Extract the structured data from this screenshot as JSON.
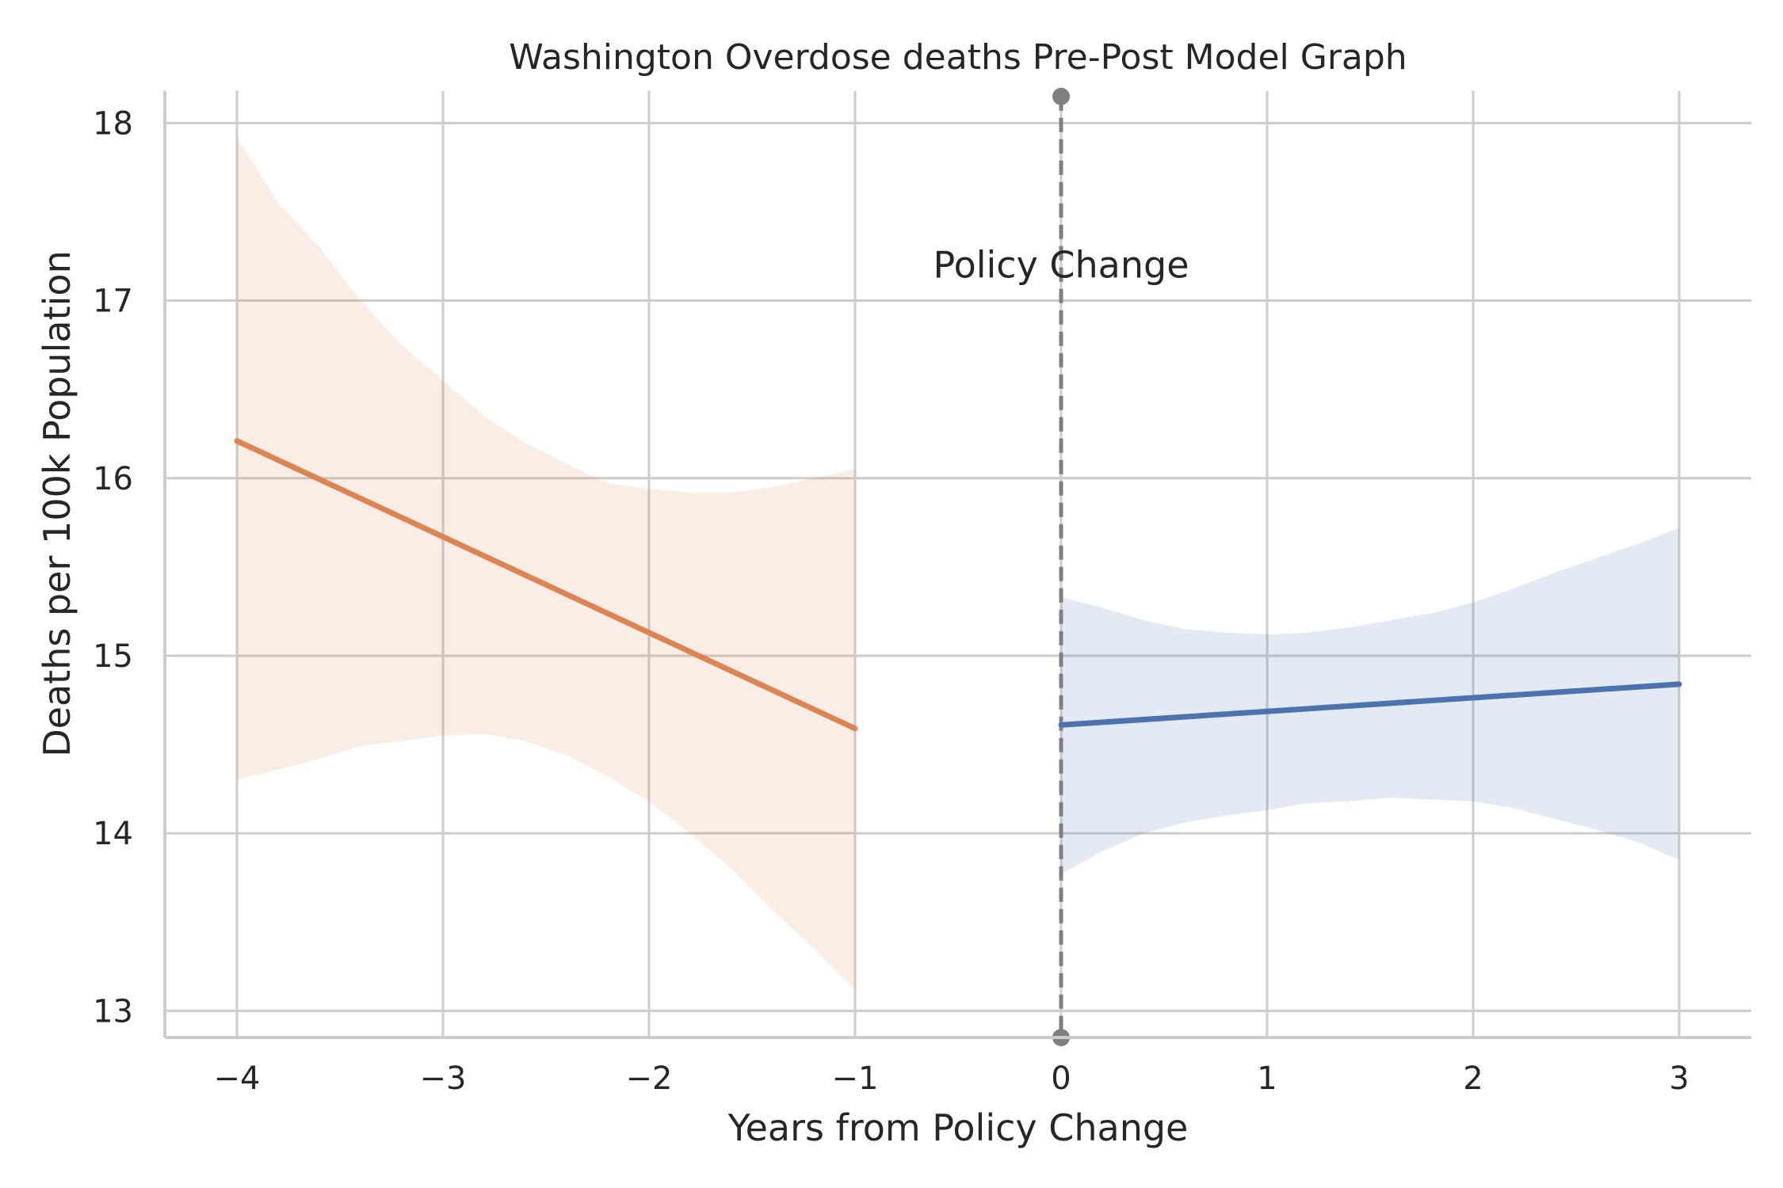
{
  "chart_data": {
    "type": "line",
    "title": "Washington Overdose deaths Pre-Post Model Graph",
    "xlabel": "Years from Policy Change",
    "ylabel": "Deaths per 100k Population",
    "xlim": [
      -4.35,
      3.35
    ],
    "ylim": [
      12.85,
      18.18
    ],
    "x_ticks": [
      -4,
      -3,
      -2,
      -1,
      0,
      1,
      2,
      3
    ],
    "x_tick_labels": [
      "−4",
      "−3",
      "−2",
      "−1",
      "0",
      "1",
      "2",
      "3"
    ],
    "y_ticks": [
      13,
      14,
      15,
      16,
      17,
      18
    ],
    "y_tick_labels": [
      "13",
      "14",
      "15",
      "16",
      "17",
      "18"
    ],
    "grid": true,
    "annotation": {
      "text": "Policy Change",
      "x": 0,
      "y": 17.2
    },
    "vline": {
      "x": 0,
      "style": "dashed",
      "color": "#808080",
      "y_range": [
        12.85,
        18.15
      ]
    },
    "series": [
      {
        "color": "#dd8452",
        "x": [
          -4,
          -1
        ],
        "y": [
          16.21,
          14.59
        ],
        "ci_x": [
          -4.0,
          -3.8,
          -3.6,
          -3.4,
          -3.2,
          -3.0,
          -2.8,
          -2.6,
          -2.4,
          -2.2,
          -2.0,
          -1.8,
          -1.6,
          -1.4,
          -1.2,
          -1.0
        ],
        "ci_lower": [
          14.3,
          14.36,
          14.42,
          14.49,
          14.52,
          14.55,
          14.56,
          14.52,
          14.44,
          14.32,
          14.18,
          14.0,
          13.8,
          13.57,
          13.35,
          13.12
        ],
        "ci_upper": [
          17.92,
          17.55,
          17.3,
          17.0,
          16.75,
          16.55,
          16.35,
          16.2,
          16.08,
          15.97,
          15.94,
          15.92,
          15.92,
          15.95,
          16.0,
          16.05
        ]
      },
      {
        "color": "#4c72b0",
        "x": [
          0,
          3
        ],
        "y": [
          14.61,
          14.84
        ],
        "ci_x": [
          0.0,
          0.2,
          0.4,
          0.6,
          0.8,
          1.0,
          1.2,
          1.4,
          1.6,
          1.8,
          2.0,
          2.2,
          2.4,
          2.6,
          2.8,
          3.0
        ],
        "ci_lower": [
          13.77,
          13.9,
          14.0,
          14.06,
          14.1,
          14.13,
          14.17,
          14.18,
          14.2,
          14.19,
          14.18,
          14.14,
          14.08,
          14.02,
          13.95,
          13.85
        ],
        "ci_upper": [
          15.33,
          15.27,
          15.2,
          15.15,
          15.13,
          15.12,
          15.13,
          15.16,
          15.2,
          15.24,
          15.3,
          15.38,
          15.47,
          15.55,
          15.63,
          15.72
        ]
      }
    ]
  }
}
